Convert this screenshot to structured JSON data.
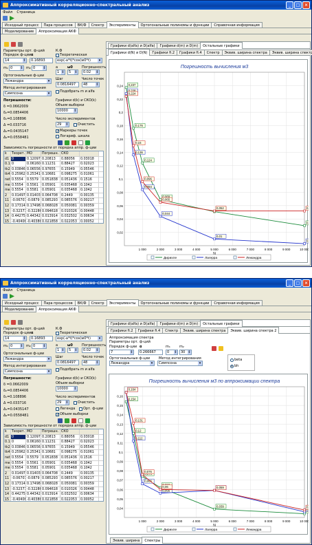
{
  "app": {
    "title": "Аппроксимативный корреляционно-спектральный анализ",
    "menu": [
      "Файл",
      "Страница"
    ]
  },
  "main_tabs": [
    "Исходный процесс",
    "Пара процессов",
    "ВК/Ф",
    "Спектр",
    "Эксперименты",
    "Ортогональные полиномы и функции",
    "Справочная информация"
  ],
  "sub_tabs": [
    "Моделирование",
    "Аппроксимация АКФ"
  ],
  "left": {
    "params_title": "Параметры орт. ф-ций",
    "order_label": "Порядок ф-ции",
    "alpha_label": "α",
    "order_value": "14",
    "alpha_value": "0.16893",
    "m1": "0",
    "m2": "0",
    "m1_label": "m₁",
    "m2_label": "m₂",
    "orth_label": "Ортогональные ф-ции",
    "orth_value": "Лежандра",
    "integ_label": "Метод интегрирования",
    "integ_value": "Симпсона",
    "kf_label": "К.Ф",
    "theor_label": "Теоретическая",
    "formula": "exp(-a*t)*cos(w0*t)",
    "a_label": "a",
    "w0_label": "ω0",
    "err_label": "Погрешность",
    "a_value": "1",
    "w0_value": "5",
    "err_value": "0.02",
    "step_label": "Шаг",
    "npts_label": "Число точек",
    "step_value": "0.0816497",
    "npts_value": "48",
    "fit_label": "Подобрать m и alfa",
    "errors_title": "Погрешности:",
    "errors": [
      "δ =0.0662009",
      "δ₂=0.0854406",
      "δ₁=0.108896",
      "Δ =0.033716",
      "Δ₁=0.0435147",
      "Δ₂=0.0558481"
    ],
    "graphs_label": "Графики d(k) и СКО(k)",
    "sample_label": "Объем выборки",
    "sample_value": "10000",
    "nexp_label": "Число экспериментов",
    "nexp_value": "29",
    "clear_label": "Очистить",
    "markers_label": "Маркеры точек",
    "log_label": "Логариф. шкала",
    "legend_label": "Легенда",
    "orth_func_label": "Орт. ф-ции",
    "sample_vol_label": "Объем выборки",
    "table_title": "Зависимость погрешности от порядка аппр. ф-ции",
    "table_headers": [
      "k",
      "Теорет.",
      "МО",
      "Погрешн.",
      "СКО"
    ],
    "table_rows": [
      [
        "d1",
        "0",
        "0.12097",
        "0.20813",
        "0.88056",
        "0.03018"
      ],
      [
        "0.1",
        "0",
        "0.061605",
        "0.11231",
        "0.88427",
        "0.02023"
      ],
      [
        "tk2",
        "0.038462",
        "0.065564",
        "0.97655",
        "0.15949",
        "0.05546"
      ],
      [
        "tk4",
        "0.25962",
        "0.25341",
        "0.10681",
        "0.098275",
        "0.01061"
      ],
      [
        "net1",
        "0.5554",
        "0.5579",
        "0.051838",
        "0.051436",
        "0.1516"
      ],
      [
        "me2a",
        "0.5554",
        "0.5561",
        "0.05901",
        "0.035468",
        "0.1042"
      ],
      [
        "me2b",
        "0.5554",
        "0.5581",
        "0.05901",
        "0.035468",
        "0.1042"
      ],
      [
        "2",
        "0.014979",
        "0.014038",
        "0.064708",
        "0.2449",
        "0.00135"
      ],
      [
        "11",
        "-0.067072",
        "-0.0879",
        "0.085293",
        "0.085576",
        "0.00217"
      ],
      [
        "12",
        "0.17314",
        "0.17498",
        "0.068028",
        "0.050081",
        "0.00359"
      ],
      [
        "13",
        "-0.32377",
        "-0.32286",
        "0.094618",
        "0.010326",
        "0.00448"
      ],
      [
        "14",
        "0.44275",
        "0.44342",
        "0.013914",
        "0.032502",
        "0.00634"
      ],
      [
        "15",
        "-0.40406",
        "-0.40386",
        "0.021858",
        "0.022053",
        "0.00052"
      ]
    ]
  },
  "panel1": {
    "tabs_row1": [
      "Графики d(alfa) и D(alfa)",
      "Графики d(m) и D(m)",
      "Остальные графики"
    ],
    "tabs_row2": [
      "Графики d(N) и D(N)",
      "Графики fi.2",
      "Графики fi.4",
      "Спектр",
      "Эквив. ширина спектра",
      "Эквив. ширина спектра 2"
    ],
    "chart_title": "Погрешность вычисления м3"
  },
  "panel2": {
    "tabs_row1": [
      "Графики d(alfa) и D(alfa)",
      "Графики d(m) и D(m)",
      "Остальные графики"
    ],
    "tabs_row2": [
      "Графики fi.2",
      "Графики fi.4",
      "Спектр",
      "Эквив. ширина спектра",
      "Эквив. ширина спектра 2"
    ],
    "spec_title": "Аппроксимация спектра",
    "spec_params": "Параметры орт. ф-ций",
    "order_label": "Порядок ф-ции",
    "alpha_label": "α",
    "m1_label": "m₁",
    "m2_label": "m₂",
    "order_value": "7",
    "alpha_value": "0.266667",
    "m1_value": "0",
    "m2_value": "30",
    "orth_label": "Ортогональные ф-ции",
    "orth_value": "Лежандра",
    "integ_label": "Метод интегрирования",
    "integ_value": "Симпсона",
    "beta_label": "beta",
    "bh_label": "bh",
    "chart_title": "Погрешность вычисления м3 по аппроксимации спектра",
    "bottom_tabs": [
      "Эквив. ширина",
      "Спектры"
    ]
  },
  "chart_data": [
    {
      "type": "line",
      "title": "Погрешность вычисления м3",
      "xlabel": "N",
      "x": [
        100,
        500,
        1000,
        2000,
        5000,
        10000
      ],
      "xlim": [
        0,
        10000
      ],
      "ylim": [
        0,
        0.26
      ],
      "yticks": [
        0.24,
        0.22,
        0.2,
        0.18,
        0.16,
        0.14,
        0.12,
        0.1,
        0.08,
        0.06,
        0.04,
        0.02
      ],
      "xticks": [
        "1 000",
        "2 000",
        "3 000",
        "4 000",
        "5 000",
        "6 000",
        "7 000",
        "8 000",
        "9 000",
        "10 000"
      ],
      "series": [
        {
          "name": "Дирихле",
          "color": "#1a8a3a",
          "values": [
            0.237,
            0.176,
            0.124,
            0.069,
            0.051,
            0.03
          ]
        },
        {
          "name": "Лагерра",
          "color": "#2233cc",
          "values": [
            0.228,
            0.136,
            0.084,
            0.044,
            0.01,
            0.003
          ]
        },
        {
          "name": "Лежандра",
          "color": "#cc2222",
          "values": [
            0.224,
            0.15,
            0.096,
            0.065,
            0.052,
            0.052
          ]
        }
      ],
      "labels": [
        {
          "t": "0.237"
        },
        {
          "t": "0.228"
        },
        {
          "t": "0.176"
        },
        {
          "t": "0.15"
        },
        {
          "t": "0.136"
        },
        {
          "t": "0.124"
        },
        {
          "t": "0.096"
        },
        {
          "t": "0.084"
        },
        {
          "t": "0.065"
        },
        {
          "t": "0.051"
        },
        {
          "t": "0.044"
        },
        {
          "t": "0.052"
        }
      ]
    },
    {
      "type": "line",
      "title": "Погрешность вычисления м3 по аппроксимации спектра",
      "xlabel": "N",
      "x": [
        100,
        500,
        1000,
        2000,
        5000,
        10000
      ],
      "xlim": [
        0,
        10000
      ],
      "ylim": [
        0.03,
        0.17
      ],
      "yticks": [
        0.16,
        0.15,
        0.14,
        0.13,
        0.12,
        0.11,
        0.1,
        0.09,
        0.08,
        0.07,
        0.06,
        0.05,
        0.04
      ],
      "xticks": [
        "1 000",
        "2 000",
        "3 000",
        "4 000",
        "5 000",
        "6 000",
        "7 000",
        "8 000",
        "9 000",
        "10 000"
      ],
      "series": [
        {
          "name": "Дирихле",
          "color": "#1a8a3a",
          "values": [
            0.154,
            0.12,
            0.074,
            0.062,
            0.039,
            0.034
          ]
        },
        {
          "name": "Лагерра",
          "color": "#2233cc",
          "values": [
            0.164,
            0.112,
            0.066,
            0.056,
            0.059,
            0.036
          ]
        },
        {
          "name": "Лежандра",
          "color": "#cc2222",
          "values": [
            0.164,
            0.131,
            0.076,
            0.06,
            0.059,
            0.038
          ]
        }
      ],
      "labels": [
        {
          "t": "0.164"
        },
        {
          "t": "0.154"
        },
        {
          "t": "0.131"
        },
        {
          "t": "0.12"
        },
        {
          "t": "0.076"
        },
        {
          "t": "0.066"
        },
        {
          "t": "0.059"
        },
        {
          "t": "0.056"
        },
        {
          "t": "0.039"
        },
        {
          "t": "0.036"
        }
      ]
    }
  ]
}
